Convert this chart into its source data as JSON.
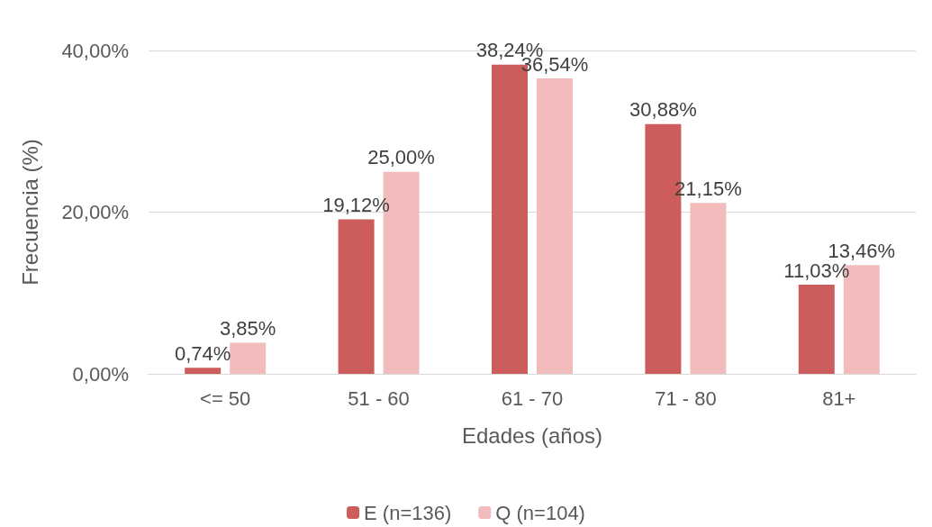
{
  "chart_data": {
    "type": "bar",
    "xlabel": "Edades (años)",
    "ylabel": "Frecuencia (%)",
    "categories": [
      "<= 50",
      "51 - 60",
      "61 - 70",
      "71 - 80",
      "81+"
    ],
    "series": [
      {
        "name": "E (n=136)",
        "color": "#cd5c5c",
        "values": [
          0.74,
          19.12,
          38.24,
          30.88,
          11.03
        ],
        "value_labels": [
          "0,74%",
          "19,12%",
          "38,24%",
          "30,88%",
          "11,03%"
        ]
      },
      {
        "name": "Q (n=104)",
        "color": "#f2bcbc",
        "values": [
          3.85,
          25.0,
          36.54,
          21.15,
          13.46
        ],
        "value_labels": [
          "3,85%",
          "25,00%",
          "36,54%",
          "21,15%",
          "13,46%"
        ]
      }
    ],
    "ylim": [
      0,
      40
    ],
    "yticks": [
      {
        "value": 0,
        "label": "0,00%"
      },
      {
        "value": 20,
        "label": "20,00%"
      },
      {
        "value": 40,
        "label": "40,00%"
      }
    ],
    "grid": "y",
    "legend": "bottom"
  }
}
